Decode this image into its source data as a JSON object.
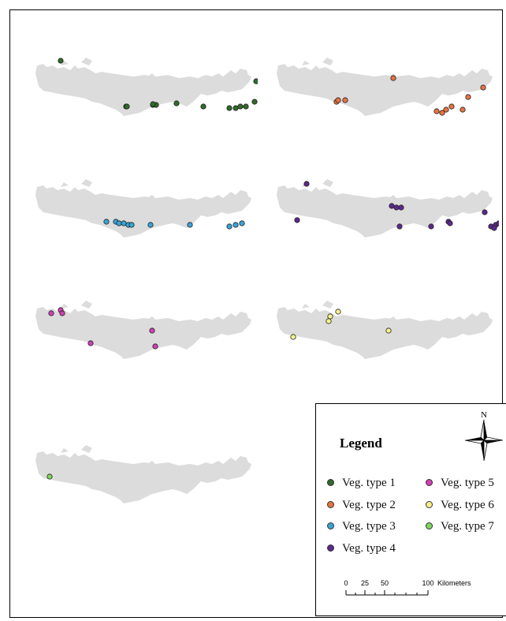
{
  "colors": {
    "island": "#dcdcdc",
    "veg1": "#2f6b2a",
    "veg2": "#e8733f",
    "veg3": "#3aa3d6",
    "veg4": "#5b2a8c",
    "veg5": "#d13fb5",
    "veg6": "#f4f28a",
    "veg7": "#7ed65a"
  },
  "legend": {
    "title": "Legend",
    "north_label": "N",
    "items": [
      {
        "label": "Veg. type 1",
        "color_key": "veg1"
      },
      {
        "label": "Veg. type 2",
        "color_key": "veg2"
      },
      {
        "label": "Veg. type 3",
        "color_key": "veg3"
      },
      {
        "label": "Veg. type 4",
        "color_key": "veg4"
      },
      {
        "label": "Veg. type 5",
        "color_key": "veg5"
      },
      {
        "label": "Veg. type 6",
        "color_key": "veg6"
      },
      {
        "label": "Veg. type 7",
        "color_key": "veg7"
      }
    ],
    "scale": {
      "ticks": [
        "0",
        "25",
        "50",
        "100"
      ],
      "unit": "Kilometers"
    }
  },
  "maps": [
    {
      "veg_type": 1,
      "point_count": 14
    },
    {
      "veg_type": 2,
      "point_count": 11
    },
    {
      "veg_type": 3,
      "point_count": 11
    },
    {
      "veg_type": 4,
      "point_count": 14
    },
    {
      "veg_type": 5,
      "point_count": 6
    },
    {
      "veg_type": 6,
      "point_count": 5
    },
    {
      "veg_type": 7,
      "point_count": 1
    }
  ]
}
